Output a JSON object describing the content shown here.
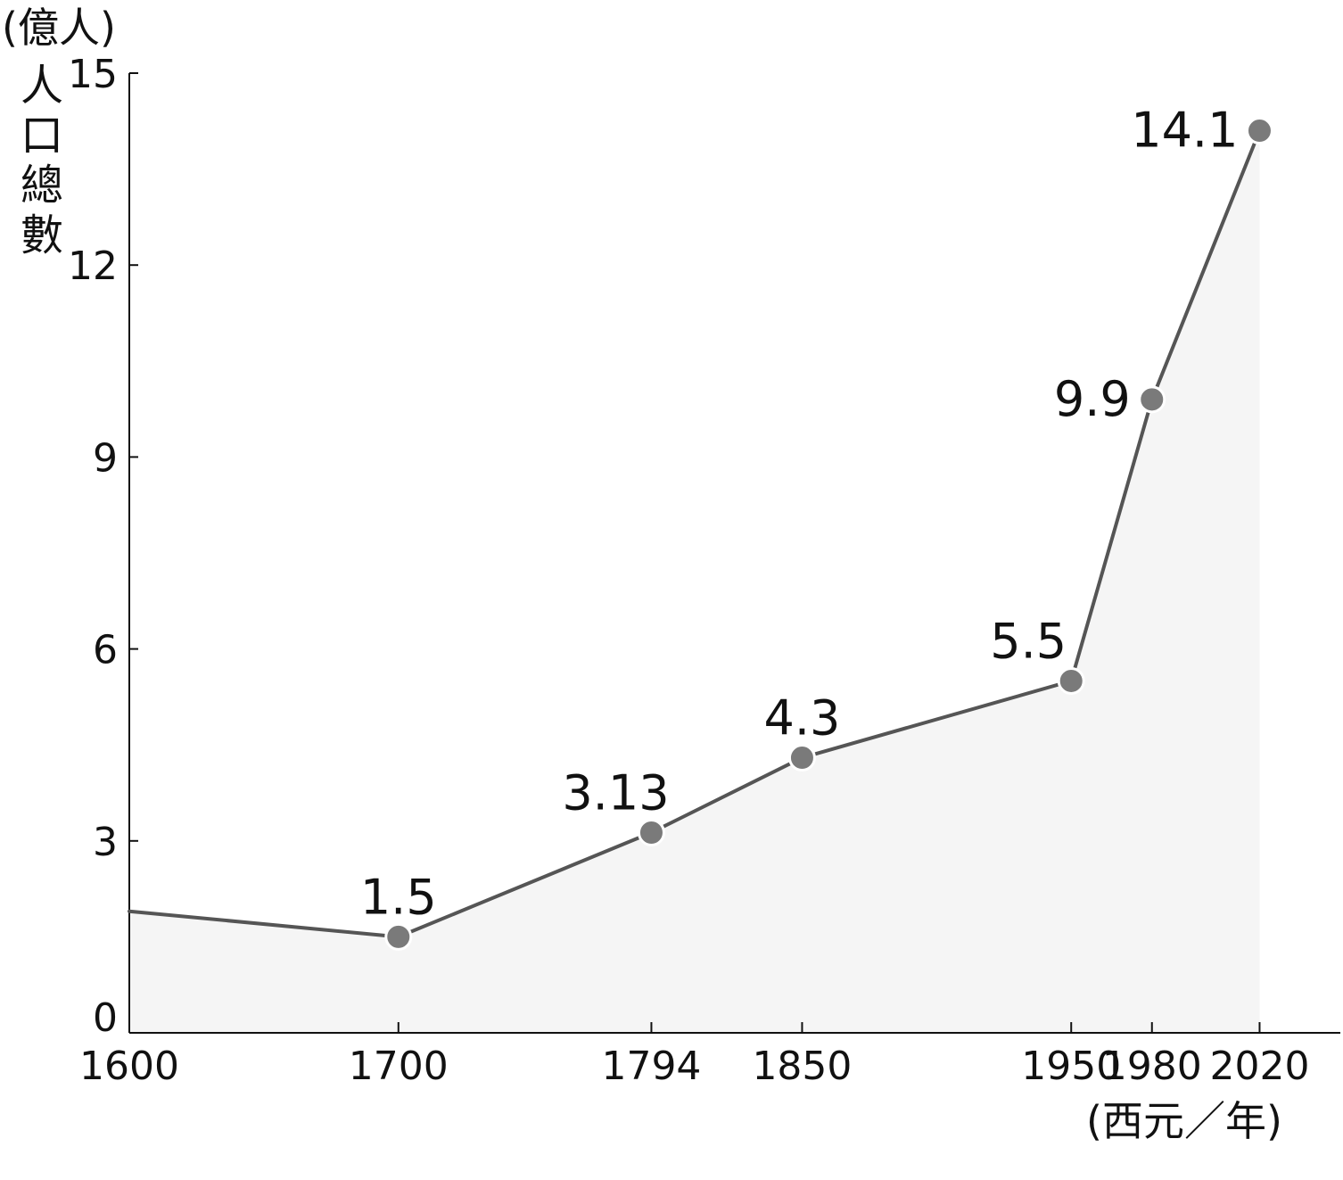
{
  "chart_data": {
    "type": "line",
    "y_unit": "(億人)",
    "ylabel": "人口總數",
    "x_unit": "(西元／年)",
    "x": [
      1600,
      1700,
      1794,
      1850,
      1950,
      1980,
      2020
    ],
    "x_tick_labels": [
      "1600",
      "1700",
      "1794",
      "1850",
      "1950",
      "1980",
      "2020"
    ],
    "y_ticks": [
      0,
      3,
      6,
      9,
      12,
      15
    ],
    "y_tick_labels": [
      "0",
      "3",
      "6",
      "9",
      "12",
      "15"
    ],
    "xlim": [
      1600,
      2050
    ],
    "ylim": [
      0,
      15
    ],
    "series": [
      {
        "values": [
          1.9,
          1.5,
          3.13,
          4.3,
          5.5,
          9.9,
          14.1
        ],
        "data_labels": [
          "",
          "1.5",
          "3.13",
          "4.3",
          "5.5",
          "9.9",
          "14.1"
        ]
      }
    ],
    "grid": false,
    "fill": true,
    "colors": {
      "line": "#555555",
      "marker": "#7a7a7a",
      "marker_stroke": "#ffffff",
      "fill": "#f5f5f5",
      "axis": "#111111",
      "text": "#111111"
    }
  }
}
